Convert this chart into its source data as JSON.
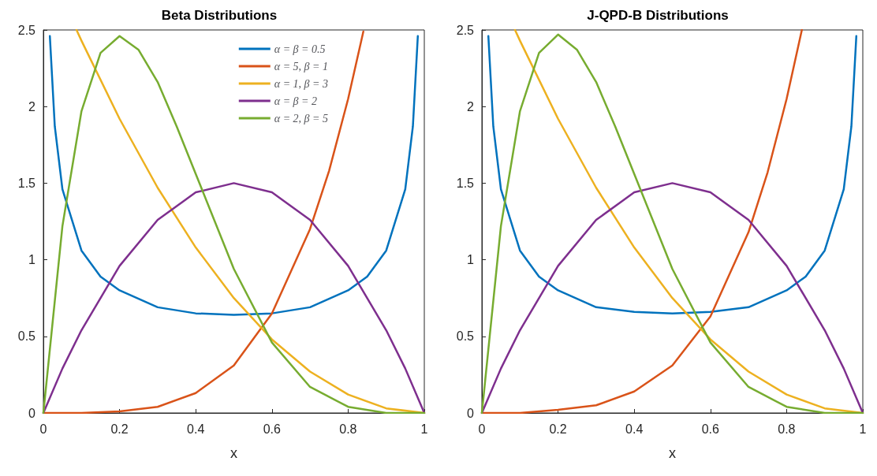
{
  "chart_data": [
    {
      "type": "line",
      "title": "Beta Distributions",
      "xlabel": "x",
      "xlim": [
        0,
        1
      ],
      "xticks": [
        0,
        0.2,
        0.4,
        0.6,
        0.8,
        1
      ],
      "ylim": [
        0,
        2.5
      ],
      "yticks": [
        0,
        0.5,
        1,
        1.5,
        2,
        2.5
      ],
      "legend": "top right",
      "series": [
        {
          "name": "α = β = 0.5",
          "color": "#0072bd",
          "x": [
            0.017,
            0.03,
            0.05,
            0.1,
            0.15,
            0.2,
            0.3,
            0.4,
            0.5,
            0.6,
            0.7,
            0.8,
            0.85,
            0.9,
            0.95,
            0.97,
            0.983
          ],
          "values": [
            2.46,
            1.87,
            1.46,
            1.06,
            0.89,
            0.8,
            0.69,
            0.65,
            0.64,
            0.65,
            0.69,
            0.8,
            0.89,
            1.06,
            1.46,
            1.87,
            2.46
          ]
        },
        {
          "name": "α = 5, β = 1",
          "color": "#d95319",
          "x": [
            0,
            0.1,
            0.2,
            0.3,
            0.4,
            0.5,
            0.6,
            0.7,
            0.75,
            0.8,
            0.84
          ],
          "values": [
            0,
            0,
            0.01,
            0.04,
            0.13,
            0.31,
            0.65,
            1.2,
            1.58,
            2.05,
            2.49
          ]
        },
        {
          "name": "α = 1, β = 3",
          "color": "#edb120",
          "x": [
            0.087,
            0.1,
            0.2,
            0.3,
            0.4,
            0.5,
            0.6,
            0.7,
            0.8,
            0.9,
            1
          ],
          "values": [
            2.5,
            2.43,
            1.92,
            1.47,
            1.08,
            0.75,
            0.48,
            0.27,
            0.12,
            0.03,
            0
          ]
        },
        {
          "name": "α = β = 2",
          "color": "#7e2f8e",
          "x": [
            0,
            0.05,
            0.1,
            0.2,
            0.3,
            0.4,
            0.5,
            0.6,
            0.7,
            0.8,
            0.9,
            0.95,
            1
          ],
          "values": [
            0,
            0.29,
            0.54,
            0.96,
            1.26,
            1.44,
            1.5,
            1.44,
            1.26,
            0.96,
            0.54,
            0.29,
            0
          ]
        },
        {
          "name": "α = 2, β = 5",
          "color": "#77ac30",
          "x": [
            0,
            0.05,
            0.1,
            0.15,
            0.2,
            0.25,
            0.3,
            0.35,
            0.4,
            0.5,
            0.6,
            0.7,
            0.8,
            0.9,
            1
          ],
          "values": [
            0,
            1.22,
            1.97,
            2.35,
            2.46,
            2.37,
            2.16,
            1.87,
            1.56,
            0.94,
            0.46,
            0.17,
            0.04,
            0,
            0
          ]
        }
      ]
    },
    {
      "type": "line",
      "title": "J-QPD-B Distributions",
      "xlabel": "x",
      "xlim": [
        0,
        1
      ],
      "xticks": [
        0,
        0.2,
        0.4,
        0.6,
        0.8,
        1
      ],
      "ylim": [
        0,
        2.5
      ],
      "yticks": [
        0,
        0.5,
        1,
        1.5,
        2,
        2.5
      ],
      "series": [
        {
          "color": "#0072bd",
          "x": [
            0.017,
            0.03,
            0.05,
            0.1,
            0.15,
            0.2,
            0.3,
            0.4,
            0.5,
            0.6,
            0.7,
            0.8,
            0.85,
            0.9,
            0.95,
            0.97,
            0.983
          ],
          "values": [
            2.46,
            1.87,
            1.46,
            1.06,
            0.89,
            0.8,
            0.69,
            0.66,
            0.65,
            0.66,
            0.69,
            0.8,
            0.89,
            1.06,
            1.46,
            1.87,
            2.46
          ]
        },
        {
          "color": "#d95319",
          "x": [
            0,
            0.1,
            0.2,
            0.3,
            0.4,
            0.5,
            0.6,
            0.7,
            0.75,
            0.8,
            0.84
          ],
          "values": [
            0,
            0,
            0.02,
            0.05,
            0.14,
            0.31,
            0.63,
            1.18,
            1.57,
            2.05,
            2.5
          ]
        },
        {
          "color": "#edb120",
          "x": [
            0.087,
            0.1,
            0.2,
            0.3,
            0.4,
            0.5,
            0.6,
            0.7,
            0.8,
            0.9,
            1
          ],
          "values": [
            2.5,
            2.43,
            1.92,
            1.47,
            1.08,
            0.75,
            0.48,
            0.27,
            0.12,
            0.03,
            0
          ]
        },
        {
          "color": "#7e2f8e",
          "x": [
            0,
            0.05,
            0.1,
            0.2,
            0.3,
            0.4,
            0.5,
            0.6,
            0.7,
            0.8,
            0.9,
            0.95,
            1
          ],
          "values": [
            0,
            0.29,
            0.54,
            0.96,
            1.26,
            1.44,
            1.5,
            1.44,
            1.26,
            0.96,
            0.54,
            0.29,
            0
          ]
        },
        {
          "color": "#77ac30",
          "x": [
            0,
            0.05,
            0.1,
            0.15,
            0.2,
            0.25,
            0.3,
            0.35,
            0.4,
            0.5,
            0.6,
            0.7,
            0.8,
            0.9,
            1
          ],
          "values": [
            0,
            1.22,
            1.97,
            2.35,
            2.47,
            2.37,
            2.16,
            1.87,
            1.56,
            0.94,
            0.46,
            0.17,
            0.04,
            0,
            0
          ]
        }
      ]
    }
  ]
}
